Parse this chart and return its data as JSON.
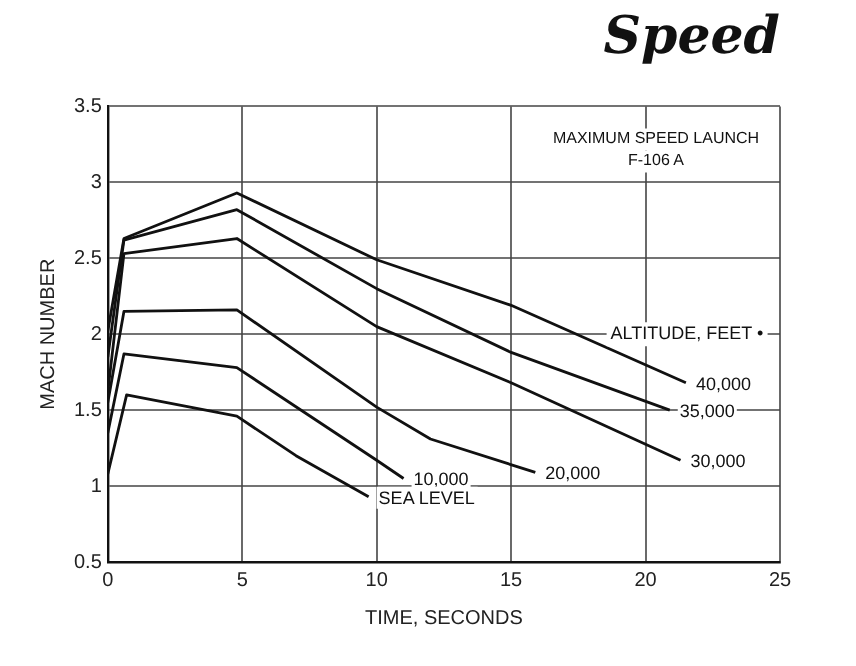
{
  "chart_data": {
    "type": "line",
    "title": "Speed",
    "xlabel": "TIME, SECONDS",
    "ylabel": "MACH NUMBER",
    "legend_title": "ALTITUDE, FEET •",
    "annotations": [
      "MAXIMUM SPEED LAUNCH",
      "F-106 A"
    ],
    "xlim": [
      0,
      25
    ],
    "xticks": [
      0,
      5,
      10,
      15,
      20,
      25
    ],
    "ylim": [
      0.5,
      3.5
    ],
    "yticks": [
      0.5,
      1.0,
      1.5,
      2.0,
      2.5,
      3.0,
      3.5
    ],
    "grid": true,
    "legend": false,
    "marker": "none",
    "line_style": "solid",
    "series": [
      {
        "name": "40,000",
        "color": "#111111",
        "x": [
          0,
          0.6,
          4.8,
          10,
          15,
          21.5
        ],
        "values": [
          2.02,
          2.63,
          2.93,
          2.49,
          2.19,
          1.68
        ]
      },
      {
        "name": "35,000",
        "color": "#111111",
        "x": [
          0,
          0.6,
          4.8,
          10,
          15,
          20.9
        ],
        "values": [
          1.85,
          2.62,
          2.82,
          2.3,
          1.88,
          1.5
        ]
      },
      {
        "name": "30,000",
        "color": "#111111",
        "x": [
          0,
          0.6,
          4.8,
          10,
          15,
          21.3
        ],
        "values": [
          1.62,
          2.53,
          2.63,
          2.05,
          1.68,
          1.17
        ]
      },
      {
        "name": "20,000",
        "color": "#111111",
        "x": [
          0,
          0.6,
          4.8,
          10,
          12,
          15.9
        ],
        "values": [
          1.55,
          2.15,
          2.16,
          1.52,
          1.31,
          1.09
        ]
      },
      {
        "name": "10,000",
        "color": "#111111",
        "x": [
          0,
          0.6,
          4.8,
          10,
          11
        ],
        "values": [
          1.35,
          1.87,
          1.78,
          1.17,
          1.05
        ]
      },
      {
        "name": "SEA LEVEL",
        "color": "#111111",
        "x": [
          0,
          0.7,
          4.8,
          7,
          9.7
        ],
        "values": [
          1.08,
          1.6,
          1.46,
          1.2,
          0.93
        ]
      }
    ]
  }
}
